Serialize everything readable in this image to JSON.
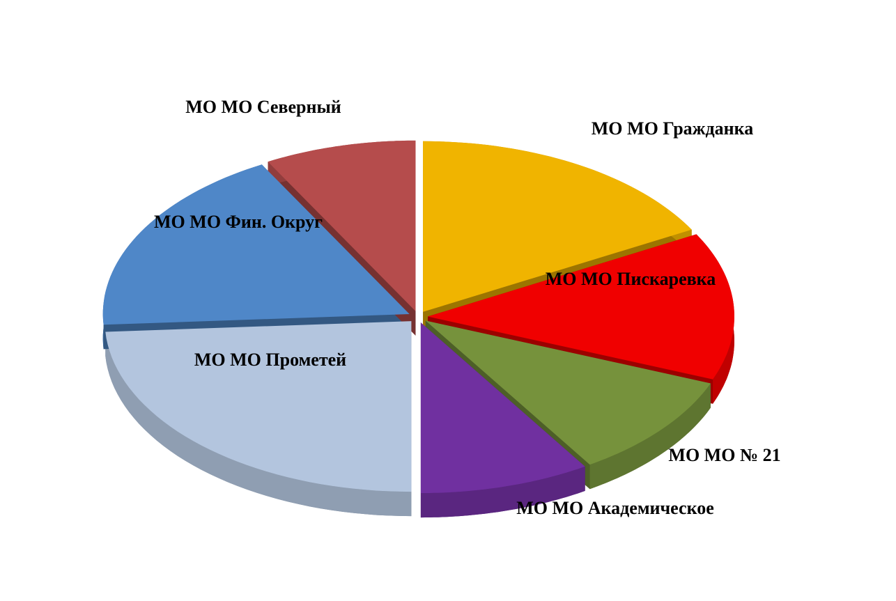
{
  "chart_data": {
    "type": "pie",
    "categories": [
      "МО МО Гражданка",
      "МО МО Пискаревка",
      "МО МО № 21",
      "МО МО Академическое",
      "МО МО Прометей",
      "МО МО Фин. Округ",
      "МО МО Северный"
    ],
    "values": [
      17,
      14,
      10,
      9,
      24,
      18,
      8
    ],
    "colors": [
      "#f0b400",
      "#f00000",
      "#76923c",
      "#7030a0",
      "#b3c5de",
      "#4f87c8",
      "#b54c4c"
    ]
  }
}
